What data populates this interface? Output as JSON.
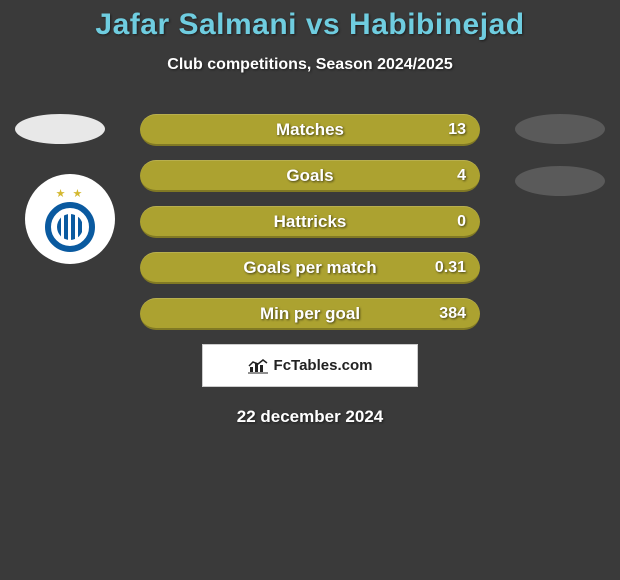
{
  "title": {
    "text": "Jafar Salmani vs Habibinejad",
    "color": "#6fcde0",
    "fontsize": 30
  },
  "subtitle": {
    "text": "Club competitions, Season 2024/2025",
    "fontsize": 16
  },
  "badges": {
    "left_color": "#e8e8e8",
    "right_color": "#5a5a5a",
    "top1": 0,
    "top2": 52
  },
  "bar_style": {
    "background": "#aca230",
    "label_fontsize": 17,
    "value_fontsize": 16
  },
  "stats": [
    {
      "label": "Matches",
      "value": "13"
    },
    {
      "label": "Goals",
      "value": "4"
    },
    {
      "label": "Hattricks",
      "value": "0"
    },
    {
      "label": "Goals per match",
      "value": "0.31"
    },
    {
      "label": "Min per goal",
      "value": "384"
    }
  ],
  "branding": "FcTables.com",
  "date": "22 december 2024",
  "date_fontsize": 17
}
